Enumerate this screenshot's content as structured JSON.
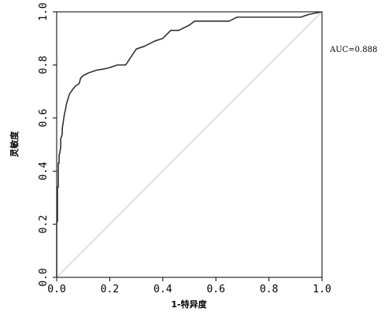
{
  "chart_data": {
    "type": "line",
    "title": "",
    "xlabel": "1-特异度",
    "ylabel": "灵敏度",
    "xlim": [
      0,
      1
    ],
    "ylim": [
      0,
      1
    ],
    "x_ticks": [
      "0.0",
      "0.2",
      "0.4",
      "0.6",
      "0.8",
      "1.0"
    ],
    "y_ticks": [
      "0.0",
      "0.2",
      "0.4",
      "0.6",
      "0.8",
      "1.0"
    ],
    "grid": false,
    "legend": "none",
    "annotation": "AUC=0.888",
    "series": [
      {
        "color": "#333333",
        "x": [
          0.0,
          0.0,
          0.003,
          0.003,
          0.006,
          0.006,
          0.009,
          0.009,
          0.012,
          0.015,
          0.015,
          0.018,
          0.021,
          0.021,
          0.024,
          0.027,
          0.03,
          0.033,
          0.036,
          0.042,
          0.048,
          0.055,
          0.062,
          0.07,
          0.085,
          0.09,
          0.1,
          0.12,
          0.15,
          0.18,
          0.2,
          0.23,
          0.26,
          0.28,
          0.3,
          0.33,
          0.35,
          0.37,
          0.4,
          0.43,
          0.46,
          0.5,
          0.52,
          0.55,
          0.6,
          0.65,
          0.67,
          0.68,
          0.7,
          0.75,
          0.8,
          0.85,
          0.92,
          0.95,
          1.0
        ],
        "y": [
          0.0,
          0.21,
          0.21,
          0.34,
          0.34,
          0.43,
          0.43,
          0.46,
          0.47,
          0.49,
          0.52,
          0.53,
          0.54,
          0.56,
          0.58,
          0.6,
          0.62,
          0.63,
          0.65,
          0.67,
          0.69,
          0.7,
          0.71,
          0.72,
          0.73,
          0.75,
          0.76,
          0.77,
          0.78,
          0.785,
          0.79,
          0.8,
          0.8,
          0.83,
          0.86,
          0.87,
          0.88,
          0.89,
          0.9,
          0.93,
          0.93,
          0.95,
          0.965,
          0.965,
          0.965,
          0.965,
          0.975,
          0.98,
          0.98,
          0.98,
          0.98,
          0.98,
          0.98,
          0.99,
          1.0
        ]
      }
    ],
    "reference_line": {
      "x": [
        0,
        1
      ],
      "y": [
        0,
        1
      ],
      "color": "#c8c8c8"
    }
  }
}
